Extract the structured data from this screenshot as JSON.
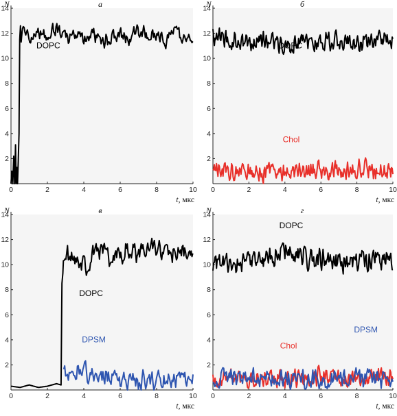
{
  "chart_data": [
    {
      "type": "line",
      "panel": "а",
      "xlabel_italic": "t",
      "xlabel_unit": ", мкс",
      "ylabel": "N",
      "xlim": [
        0,
        10
      ],
      "ylim": [
        0,
        14
      ],
      "xticks": [
        "0",
        "2",
        "4",
        "6",
        "8",
        "10"
      ],
      "yticks": [
        "2",
        "4",
        "6",
        "8",
        "10",
        "12",
        "14"
      ],
      "series": [
        {
          "name": "DOPC",
          "color": "#000000",
          "label_at": [
            2.05,
            10.8
          ],
          "x": [
            0.0,
            0.05,
            0.1,
            0.15,
            0.2,
            0.25,
            0.28,
            0.32,
            0.36,
            0.4,
            0.44,
            0.48,
            0.52,
            0.56,
            0.6,
            1.0,
            1.5,
            2.0,
            2.5,
            3.0,
            3.5,
            4.0,
            4.5,
            5.0,
            5.5,
            6.0,
            6.5,
            7.0,
            7.5,
            8.0,
            8.5,
            9.0,
            9.5,
            10.0
          ],
          "y": [
            0.0,
            1.0,
            0.0,
            2.2,
            0.0,
            3.1,
            0.0,
            1.3,
            0.0,
            1.8,
            4.0,
            11.5,
            12.6,
            11.3,
            12.0,
            11.8,
            12.3,
            11.6,
            12.4,
            11.7,
            11.9,
            11.5,
            12.1,
            11.2,
            11.8,
            12.0,
            11.6,
            12.3,
            11.7,
            11.9,
            11.4,
            12.1,
            11.5,
            11.8
          ],
          "noise_amp": 0.75,
          "noise_from": 0.6,
          "noise_step": 0.045
        }
      ]
    },
    {
      "type": "line",
      "panel": "б",
      "xlabel_italic": "t",
      "xlabel_unit": ", мкс",
      "ylabel": "N",
      "xlim": [
        0,
        10
      ],
      "ylim": [
        0,
        14
      ],
      "xticks": [
        "0",
        "2",
        "4",
        "6",
        "8",
        "10"
      ],
      "yticks": [
        "2",
        "4",
        "6",
        "8",
        "10",
        "12",
        "14"
      ],
      "series": [
        {
          "name": "DOPC",
          "color": "#000000",
          "label_at": [
            4.3,
            10.8
          ],
          "x": [
            0,
            1,
            2,
            3,
            4,
            5,
            6,
            7,
            8,
            9,
            10
          ],
          "y": [
            11.8,
            11.5,
            11.2,
            11.6,
            11.0,
            11.4,
            11.3,
            11.5,
            11.2,
            11.4,
            11.5
          ],
          "noise_amp": 0.9,
          "noise_from": 0.0,
          "noise_step": 0.04
        },
        {
          "name": "Chol",
          "color": "#e8302a",
          "label_at": [
            4.35,
            3.3
          ],
          "x": [
            0,
            1,
            2,
            3,
            4,
            5,
            6,
            7,
            8,
            9,
            10
          ],
          "y": [
            1.1,
            1.0,
            1.0,
            0.9,
            1.0,
            1.1,
            1.0,
            1.0,
            1.2,
            1.1,
            1.0
          ],
          "noise_amp": 0.95,
          "noise_from": 0.0,
          "noise_step": 0.04
        }
      ]
    },
    {
      "type": "line",
      "panel": "в",
      "xlabel_italic": "t",
      "xlabel_unit": ", мкс",
      "ylabel": "N",
      "xlim": [
        0,
        10
      ],
      "ylim": [
        0,
        14
      ],
      "xticks": [
        "0",
        "2",
        "4",
        "6",
        "8",
        "10"
      ],
      "yticks": [
        "2",
        "4",
        "6",
        "8",
        "10",
        "12",
        "14"
      ],
      "series": [
        {
          "name": "DOPC",
          "color": "#000000",
          "label_at": [
            4.4,
            7.5
          ],
          "x": [
            0.0,
            0.5,
            1.0,
            1.5,
            2.0,
            2.5,
            2.75,
            2.8,
            2.85,
            2.9,
            3.0,
            3.5,
            4.0,
            4.5,
            5.0,
            5.5,
            6.0,
            6.5,
            7.0,
            7.5,
            8.0,
            8.5,
            9.0,
            9.5,
            10.0
          ],
          "y": [
            0.3,
            0.2,
            0.4,
            0.2,
            0.3,
            0.5,
            0.4,
            8.5,
            9.3,
            11.0,
            10.8,
            10.5,
            9.8,
            10.6,
            11.2,
            10.4,
            10.9,
            11.3,
            10.8,
            11.0,
            11.5,
            11.2,
            10.9,
            11.1,
            11.0
          ],
          "noise_amp": 1.0,
          "noise_from": 2.9,
          "noise_step": 0.045
        },
        {
          "name": "DPSM",
          "color": "#2e55b0",
          "label_at": [
            4.55,
            3.8
          ],
          "x": [
            2.9,
            3.5,
            4.0,
            4.5,
            5.0,
            5.5,
            6.0,
            6.5,
            7.0,
            7.5,
            8.0,
            8.5,
            9.0,
            9.5,
            10.0
          ],
          "y": [
            1.5,
            1.6,
            1.5,
            1.3,
            1.1,
            0.9,
            0.8,
            0.7,
            0.8,
            0.7,
            0.7,
            0.8,
            0.9,
            0.8,
            0.9
          ],
          "noise_amp": 1.0,
          "noise_from": 2.9,
          "noise_step": 0.05
        }
      ]
    },
    {
      "type": "line",
      "panel": "г",
      "xlabel_italic": "t",
      "xlabel_unit": ", мкс",
      "ylabel": "N",
      "xlim": [
        0,
        10
      ],
      "ylim": [
        0,
        14
      ],
      "xticks": [
        "0",
        "2",
        "4",
        "6",
        "8",
        "10"
      ],
      "yticks": [
        "2",
        "4",
        "6",
        "8",
        "10",
        "12",
        "14"
      ],
      "series": [
        {
          "name": "DOPC",
          "color": "#000000",
          "label_at": [
            4.35,
            12.9
          ],
          "x": [
            0,
            1,
            2,
            3,
            4,
            5,
            6,
            7,
            8,
            9,
            10
          ],
          "y": [
            10.1,
            10.0,
            10.4,
            10.2,
            11.2,
            10.6,
            10.4,
            10.2,
            10.3,
            10.5,
            10.2
          ],
          "noise_amp": 1.1,
          "noise_from": 0.0,
          "noise_step": 0.04
        },
        {
          "name": "Chol",
          "color": "#e8302a",
          "label_at": [
            4.2,
            3.3
          ],
          "x": [
            0,
            1,
            2,
            3,
            4,
            5,
            6,
            7,
            8,
            9,
            10
          ],
          "y": [
            1.0,
            1.1,
            1.0,
            0.9,
            1.0,
            1.0,
            1.1,
            1.0,
            1.0,
            1.1,
            1.0
          ],
          "noise_amp": 0.9,
          "noise_from": 0.0,
          "noise_step": 0.04
        },
        {
          "name": "DPSM",
          "color": "#2e55b0",
          "label_at": [
            8.5,
            4.6
          ],
          "x": [
            0,
            1,
            2,
            3,
            4,
            5,
            6,
            7,
            8,
            9,
            10
          ],
          "y": [
            0.9,
            1.2,
            1.0,
            1.1,
            0.9,
            0.8,
            0.9,
            0.8,
            1.0,
            0.8,
            0.7
          ],
          "noise_amp": 1.0,
          "noise_from": 0.0,
          "noise_step": 0.05
        }
      ]
    }
  ]
}
